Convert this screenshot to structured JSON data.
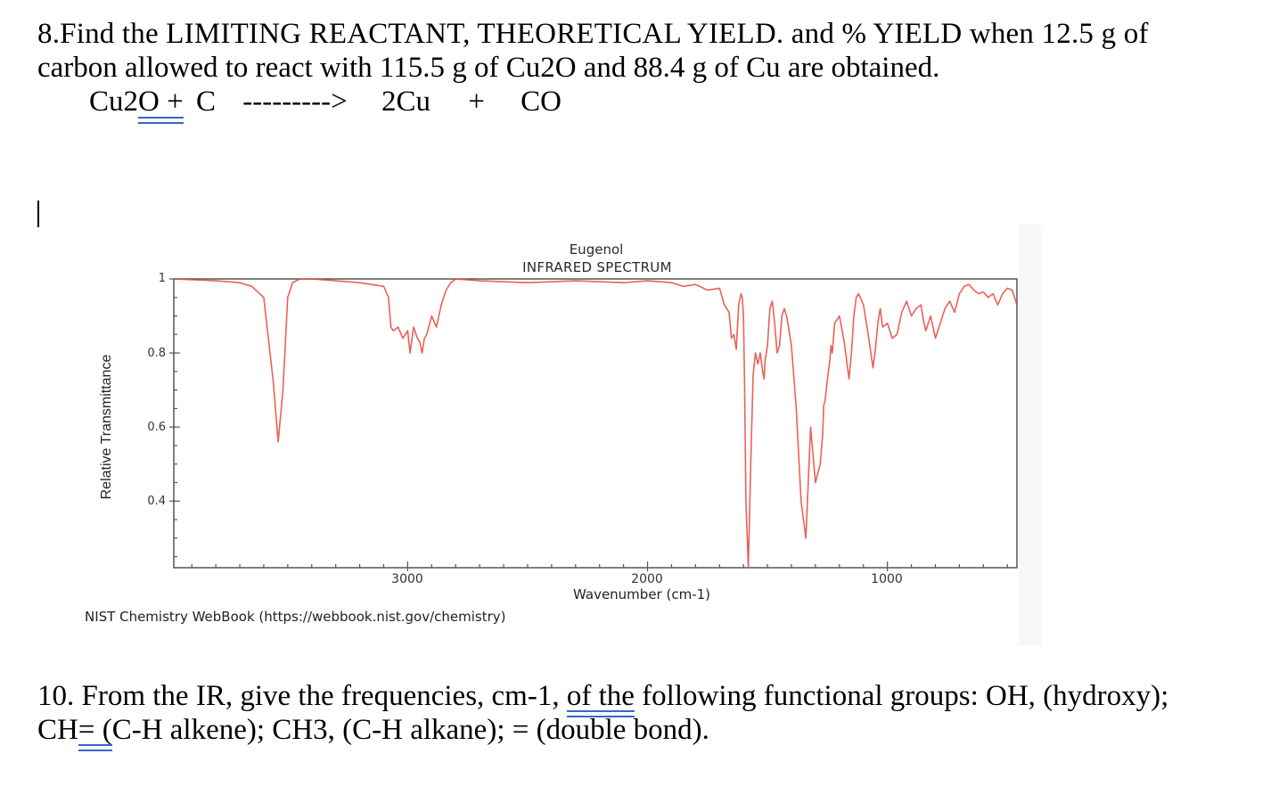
{
  "question8": {
    "line1": "8.Find the LIMITING REACTANT, THEORETICAL YIELD. and % YIELD when 12.5 g of",
    "line2": "carbon allowed to react with 115.5 g of Cu2O and 88.4 g of Cu are obtained.",
    "equation": {
      "reactant1": "Cu2",
      "reactant1_underlined": "O +",
      "reactant2": "C",
      "arrow": "--------->",
      "product1": "2Cu",
      "plus": "+",
      "product2": "CO"
    }
  },
  "question10": {
    "line1_a": "10. From the IR, give the frequencies, cm-1, ",
    "line1_underlined": "of the",
    "line1_b": " following functional groups:  OH, (hydroxy);",
    "line2_a": "CH",
    "line2_underlined": "= (",
    "line2_b": "C-H alkene); CH3,  (C-H alkane); =  (double bond)."
  },
  "colors": {
    "trace": "#e8453c",
    "axis": "#555555",
    "spellcheck_underline": "#3a66c7"
  },
  "chart_data": {
    "type": "line",
    "title": "Eugenol",
    "subtitle": "INFRARED SPECTRUM",
    "xlabel": "Wavenumber (cm-1)",
    "ylabel": "Relative Transmittance",
    "credit": "NIST Chemistry WebBook (https://webbook.nist.gov/chemistry)",
    "x_ticks": [
      "3000",
      "2000",
      "1000"
    ],
    "y_ticks": [
      "1",
      "0.8",
      "0.6",
      "0.4"
    ],
    "xlim": [
      3975,
      460
    ],
    "ylim": [
      0.22,
      1.0
    ],
    "x_reversed": true,
    "grid": false,
    "legend": "none",
    "series": [
      {
        "name": "Eugenol IR",
        "x": [
          3975,
          3800,
          3700,
          3650,
          3600,
          3560,
          3540,
          3520,
          3500,
          3480,
          3450,
          3400,
          3300,
          3200,
          3100,
          3080,
          3070,
          3060,
          3040,
          3020,
          3000,
          2990,
          2975,
          2960,
          2950,
          2940,
          2930,
          2920,
          2900,
          2880,
          2860,
          2840,
          2820,
          2800,
          2700,
          2500,
          2300,
          2100,
          2000,
          1900,
          1850,
          1800,
          1750,
          1700,
          1680,
          1660,
          1650,
          1640,
          1630,
          1620,
          1610,
          1605,
          1600,
          1595,
          1590,
          1580,
          1570,
          1560,
          1550,
          1540,
          1530,
          1520,
          1514,
          1510,
          1500,
          1490,
          1480,
          1470,
          1460,
          1450,
          1440,
          1430,
          1420,
          1400,
          1380,
          1360,
          1340,
          1320,
          1300,
          1280,
          1270,
          1265,
          1260,
          1250,
          1240,
          1235,
          1230,
          1220,
          1200,
          1180,
          1160,
          1150,
          1140,
          1130,
          1120,
          1100,
          1080,
          1060,
          1050,
          1040,
          1030,
          1020,
          1000,
          980,
          960,
          940,
          920,
          910,
          900,
          880,
          860,
          850,
          840,
          820,
          800,
          780,
          760,
          740,
          720,
          700,
          680,
          660,
          640,
          620,
          600,
          580,
          560,
          540,
          520,
          500,
          480,
          460
        ],
        "y": [
          1.0,
          0.995,
          0.99,
          0.98,
          0.95,
          0.72,
          0.56,
          0.7,
          0.95,
          0.99,
          1.0,
          1.0,
          0.995,
          0.99,
          0.98,
          0.95,
          0.87,
          0.86,
          0.87,
          0.84,
          0.86,
          0.8,
          0.87,
          0.84,
          0.83,
          0.8,
          0.84,
          0.85,
          0.9,
          0.87,
          0.93,
          0.97,
          0.99,
          1.0,
          0.995,
          0.99,
          0.995,
          0.99,
          0.995,
          0.99,
          0.98,
          0.985,
          0.97,
          0.975,
          0.93,
          0.91,
          0.84,
          0.85,
          0.81,
          0.93,
          0.96,
          0.95,
          0.9,
          0.7,
          0.4,
          0.22,
          0.5,
          0.74,
          0.8,
          0.77,
          0.8,
          0.75,
          0.73,
          0.78,
          0.82,
          0.92,
          0.94,
          0.88,
          0.8,
          0.82,
          0.9,
          0.92,
          0.9,
          0.82,
          0.65,
          0.4,
          0.3,
          0.6,
          0.45,
          0.5,
          0.58,
          0.66,
          0.67,
          0.73,
          0.78,
          0.82,
          0.8,
          0.88,
          0.9,
          0.83,
          0.73,
          0.8,
          0.9,
          0.95,
          0.96,
          0.93,
          0.85,
          0.76,
          0.81,
          0.88,
          0.92,
          0.87,
          0.88,
          0.84,
          0.85,
          0.91,
          0.94,
          0.92,
          0.9,
          0.92,
          0.93,
          0.89,
          0.86,
          0.9,
          0.84,
          0.88,
          0.92,
          0.94,
          0.91,
          0.96,
          0.98,
          0.985,
          0.97,
          0.96,
          0.965,
          0.95,
          0.96,
          0.93,
          0.96,
          0.975,
          0.97,
          0.93
        ]
      }
    ]
  }
}
